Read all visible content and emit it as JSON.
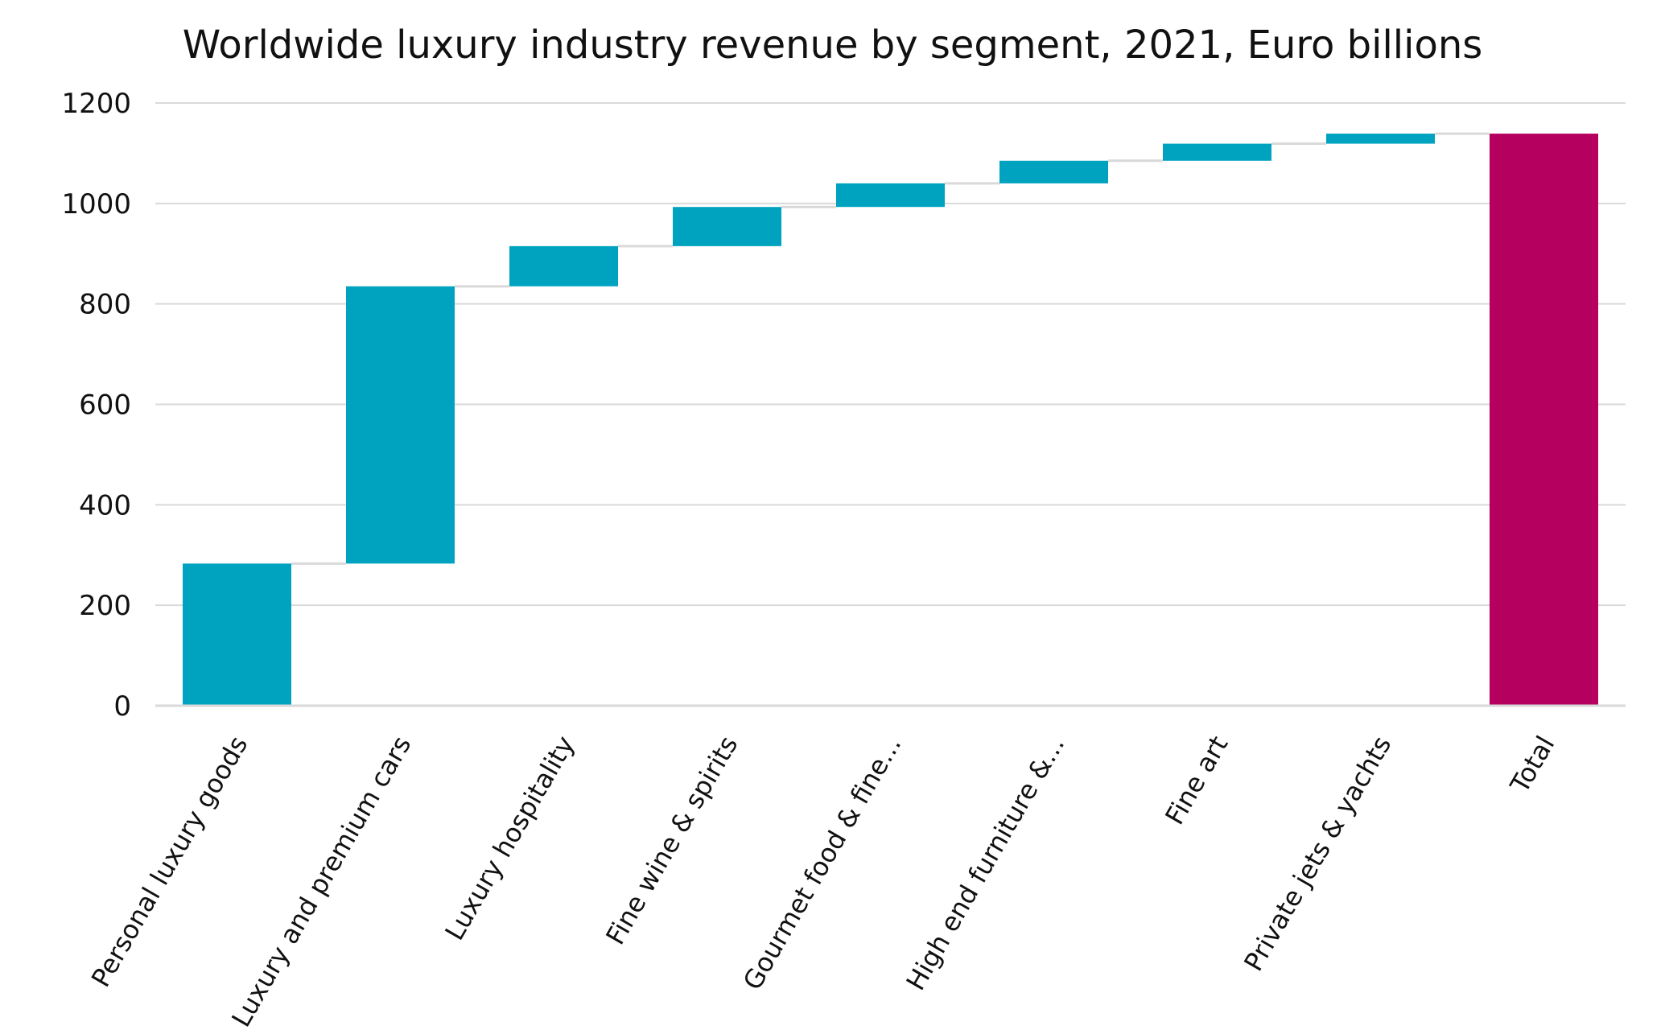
{
  "chart_data": {
    "type": "waterfall",
    "title": "Worldwide luxury industry revenue by segment, 2021, Euro billions",
    "categories": [
      "Personal luxury goods",
      "Luxury and premium cars",
      "Luxury hospitality",
      "Fine wine & spirits",
      "Gourmet food & fine...",
      "High end furniture &...",
      "Fine art",
      "Private jets & yachts",
      "Total"
    ],
    "values": [
      283,
      552,
      80,
      78,
      47,
      45,
      34,
      20,
      1139
    ],
    "is_total": [
      false,
      false,
      false,
      false,
      false,
      false,
      false,
      false,
      true
    ],
    "ylim": [
      0,
      1200
    ],
    "yticks": [
      "0",
      "200",
      "400",
      "600",
      "800",
      "1000",
      "1200"
    ],
    "colors": {
      "increase": "#00a3bf",
      "total": "#b5005f",
      "grid": "#d9d9d9",
      "connector": "#d9d9d9"
    },
    "grid": true,
    "legend": "none"
  }
}
